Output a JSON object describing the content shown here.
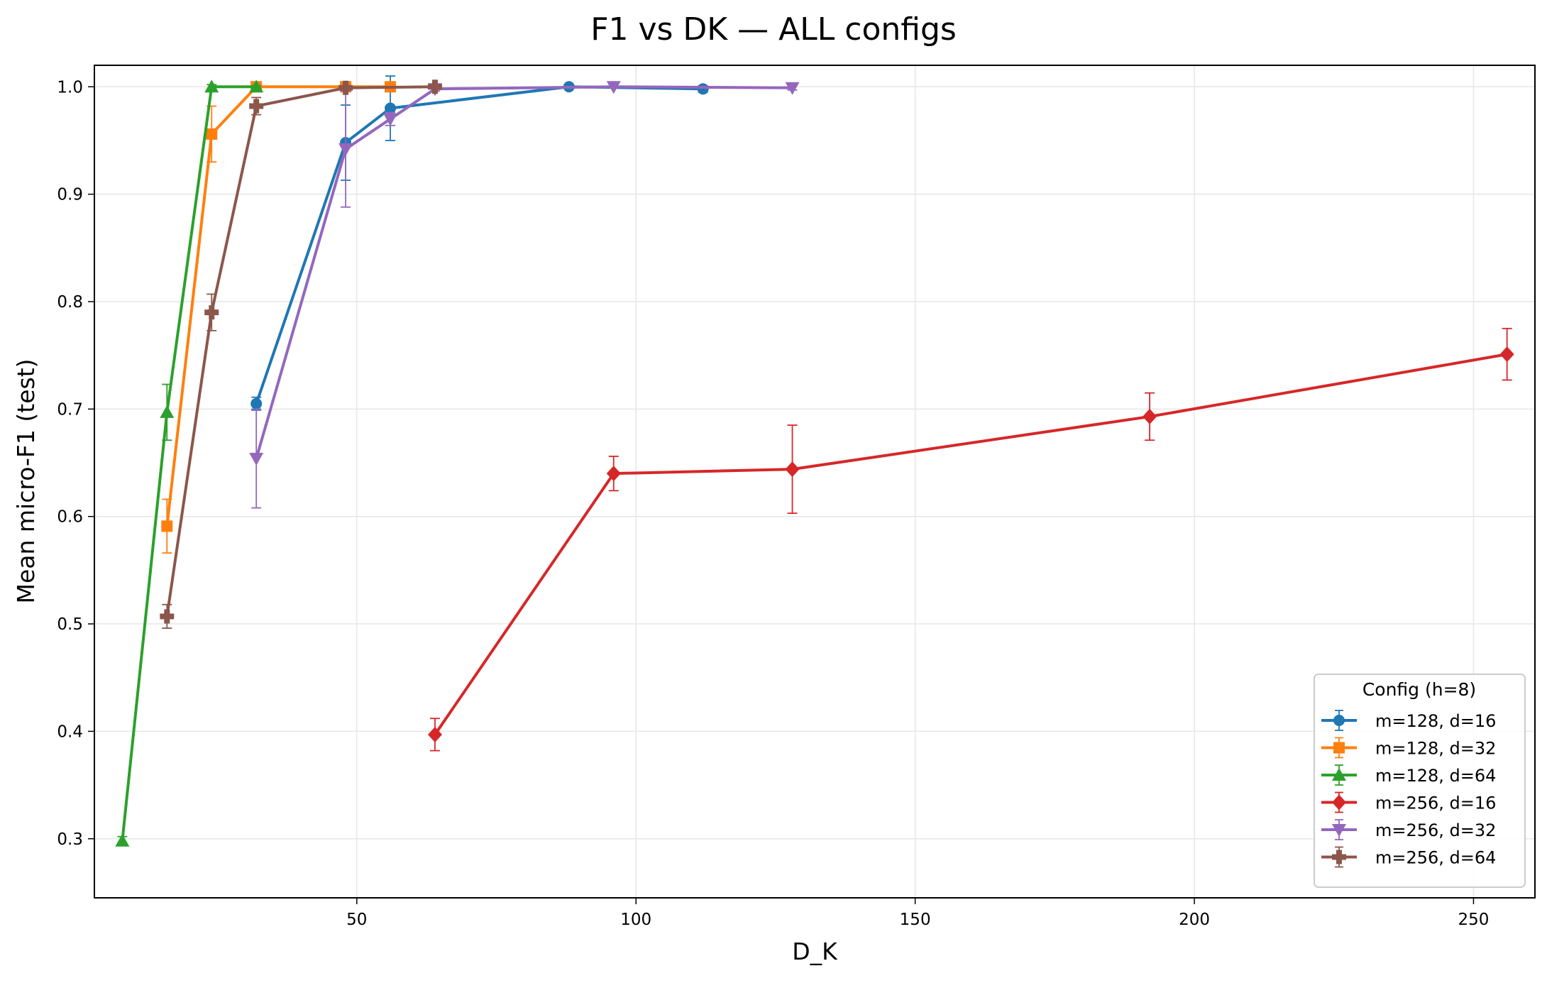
{
  "chart_data": {
    "type": "line",
    "title": "F1 vs DK — ALL configs",
    "xlabel": "D_K",
    "ylabel": "Mean micro-F1 (test)",
    "xlim": [
      3,
      261
    ],
    "ylim": [
      0.245,
      1.02
    ],
    "xticks": [
      50,
      100,
      150,
      200,
      250
    ],
    "yticks": [
      0.3,
      0.4,
      0.5,
      0.6,
      0.7,
      0.8,
      0.9,
      1.0
    ],
    "grid": true,
    "legend": {
      "title": "Config (h=8)",
      "placement": "lower-right"
    },
    "series": [
      {
        "name": "m=128, d=16",
        "color": "#1f77b4",
        "marker": "circle",
        "x": [
          32,
          48,
          56,
          88,
          112
        ],
        "y": [
          0.705,
          0.948,
          0.98,
          1.0,
          0.998
        ],
        "err": [
          0.006,
          0.035,
          0.03,
          0.002,
          0.003
        ]
      },
      {
        "name": "m=128, d=32",
        "color": "#ff7f0e",
        "marker": "square",
        "x": [
          16,
          24,
          32,
          48,
          56
        ],
        "y": [
          0.591,
          0.956,
          1.0,
          1.0,
          1.0
        ],
        "err": [
          0.025,
          0.026,
          0.002,
          0.001,
          0.001
        ]
      },
      {
        "name": "m=128, d=64",
        "color": "#2ca02c",
        "marker": "triangle-up",
        "x": [
          8,
          16,
          24,
          32
        ],
        "y": [
          0.298,
          0.697,
          1.0,
          1.0
        ],
        "err": [
          0.004,
          0.026,
          0.002,
          0.001
        ]
      },
      {
        "name": "m=256, d=16",
        "color": "#d62728",
        "marker": "diamond",
        "x": [
          64,
          96,
          128,
          192,
          256
        ],
        "y": [
          0.397,
          0.64,
          0.644,
          0.693,
          0.751
        ],
        "err": [
          0.015,
          0.016,
          0.041,
          0.022,
          0.024
        ]
      },
      {
        "name": "m=256, d=32",
        "color": "#9467bd",
        "marker": "triangle-down",
        "x": [
          32,
          48,
          56,
          64,
          96,
          128
        ],
        "y": [
          0.654,
          0.942,
          0.97,
          0.998,
          1.0,
          0.999
        ],
        "err": [
          0.046,
          0.054,
          0.006,
          0.002,
          0.001,
          0.002
        ]
      },
      {
        "name": "m=256, d=64",
        "color": "#8c564b",
        "marker": "plus",
        "x": [
          16,
          24,
          32,
          48,
          64
        ],
        "y": [
          0.507,
          0.79,
          0.982,
          0.999,
          1.0
        ],
        "err": [
          0.011,
          0.017,
          0.008,
          0.002,
          0.001
        ]
      }
    ]
  }
}
